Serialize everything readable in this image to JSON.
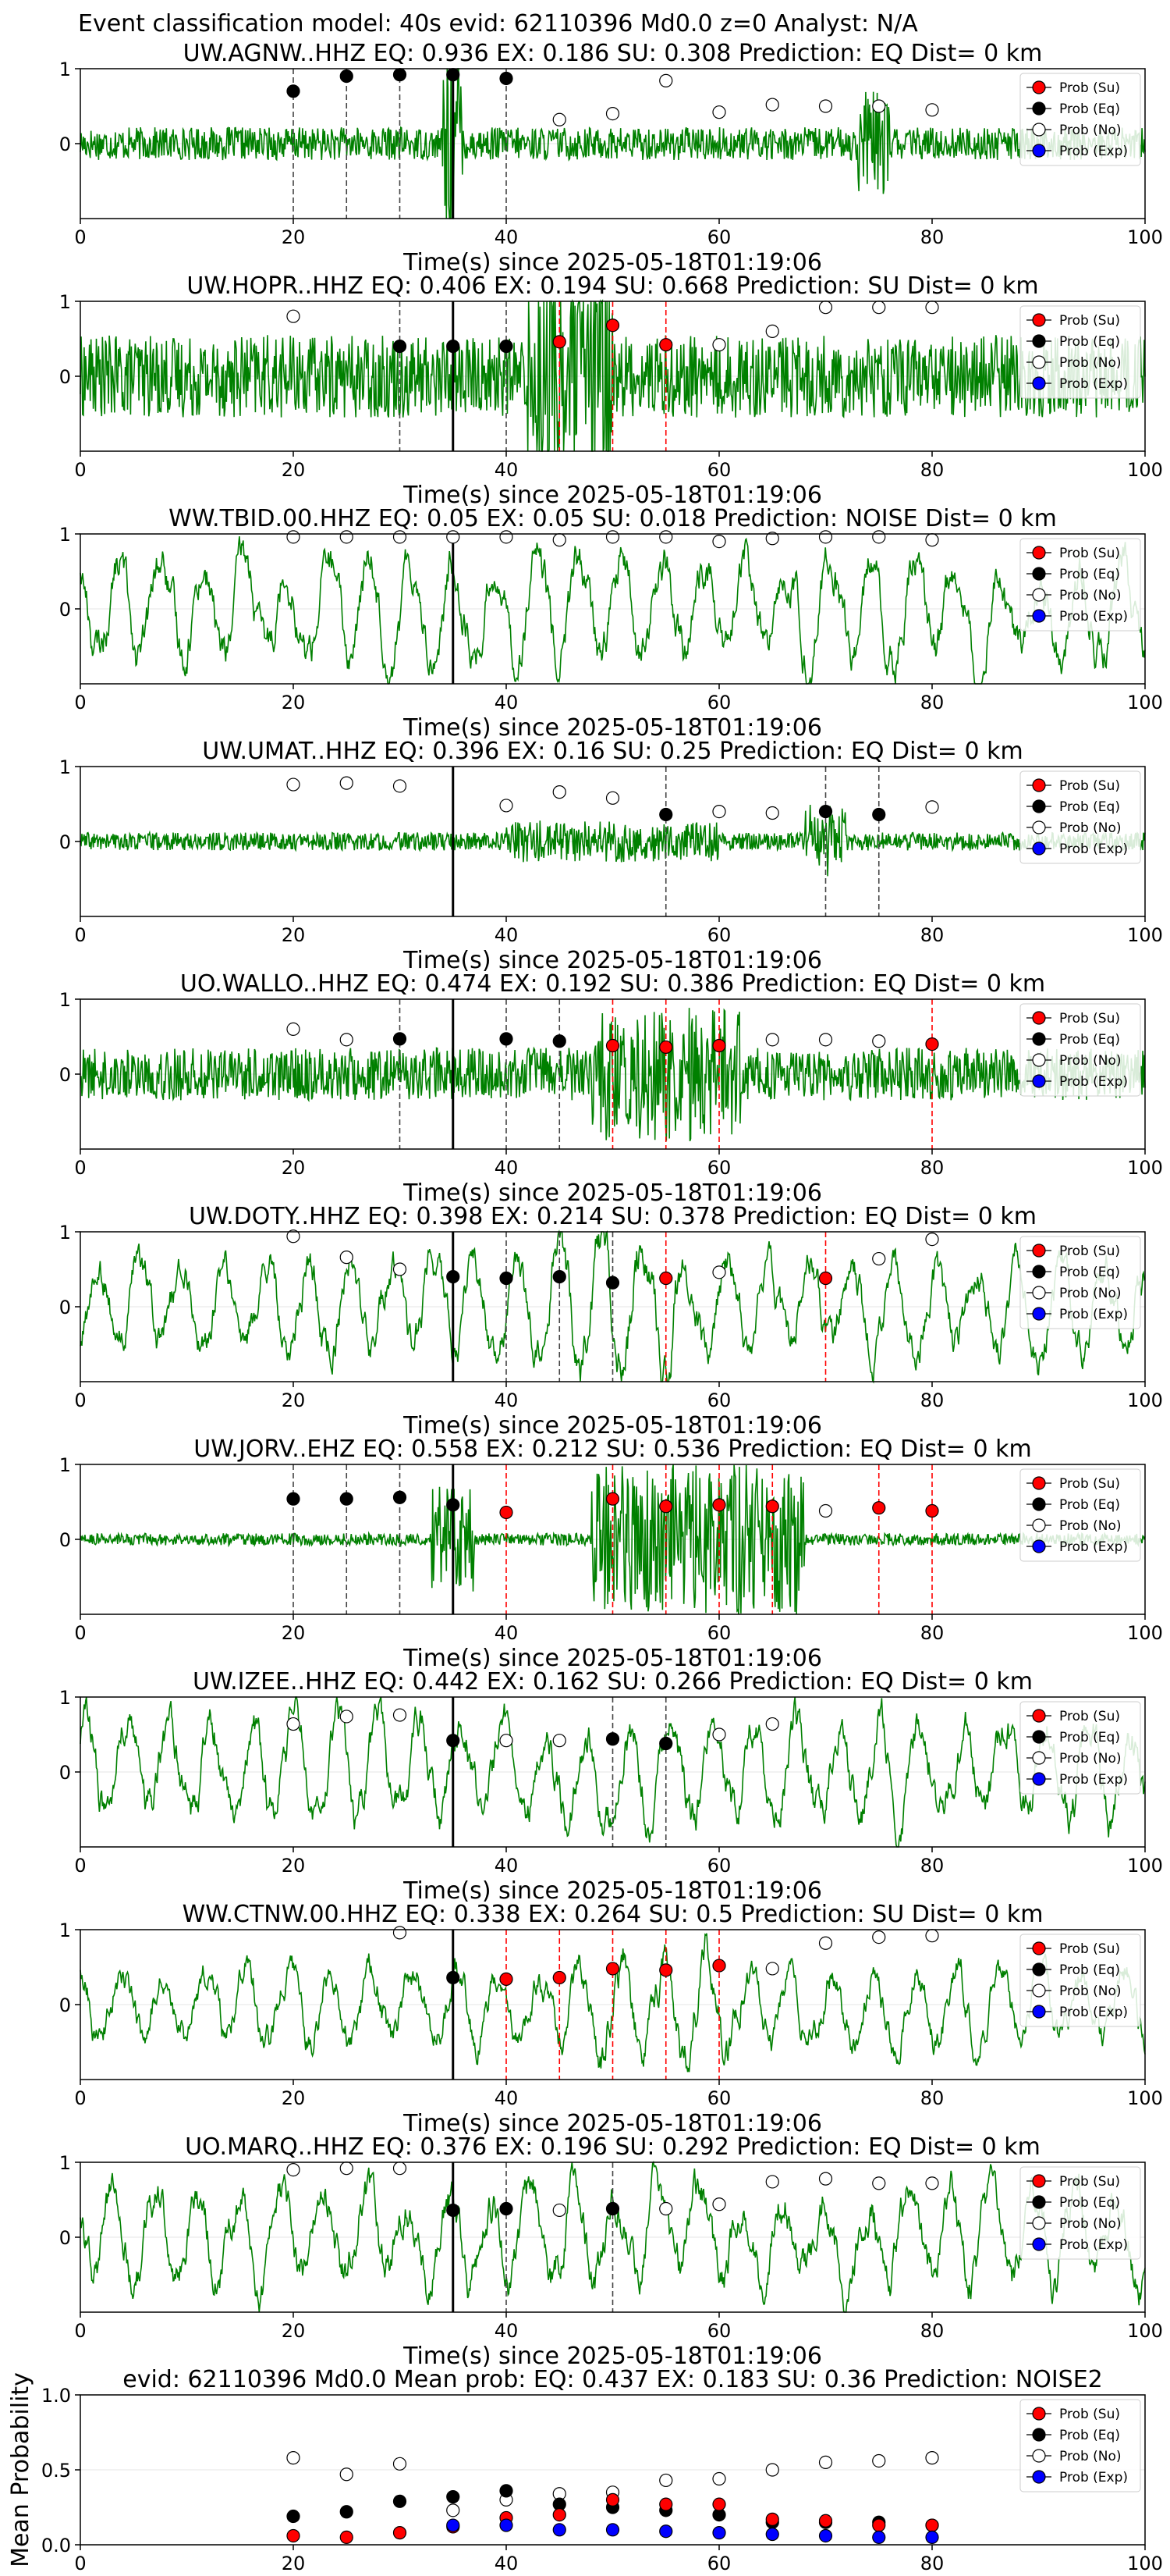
{
  "suptitle": "Event classification model: 40s evid: 62110396 Md0.0 z=0 Analyst: N/A",
  "legend_entries": [
    "Prob (Su)",
    "Prob (Eq)",
    "Prob (No)",
    "Prob (Exp)"
  ],
  "colors": {
    "su": "#ff0000",
    "eq": "#000000",
    "no": "#ffffff",
    "exp": "#0000ff",
    "waveform": "#008000"
  },
  "chart_data": [
    {
      "type": "scatter",
      "title": "UW.AGNW..HHZ   EQ: 0.936  EX: 0.186  SU: 0.308   Prediction: EQ    Dist= 0 km",
      "xlabel": "Time(s) since 2025-05-18T01:19:06",
      "xlim": [
        0,
        100
      ],
      "ylim": [
        -1,
        1
      ],
      "xticks": [
        "0",
        "20",
        "40",
        "60",
        "80",
        "100"
      ],
      "yticks": [
        "1",
        "0"
      ],
      "amp": 0.22,
      "burst": [
        34,
        36,
        1.6
      ],
      "burst2": [
        73,
        76,
        0.7
      ],
      "eq": [
        [
          20,
          0.7
        ],
        [
          25,
          0.9
        ],
        [
          30,
          0.92
        ],
        [
          35,
          0.92
        ],
        [
          40,
          0.87
        ]
      ],
      "su": [],
      "no": [
        [
          45,
          0.32
        ],
        [
          50,
          0.4
        ],
        [
          55,
          0.84
        ],
        [
          60,
          0.42
        ],
        [
          65,
          0.52
        ],
        [
          70,
          0.5
        ],
        [
          75,
          0.5
        ],
        [
          80,
          0.45
        ]
      ],
      "vlines": [
        {
          "x": 20,
          "c": "eq"
        },
        {
          "x": 25,
          "c": "eq"
        },
        {
          "x": 30,
          "c": "eq"
        },
        {
          "x": 40,
          "c": "eq"
        }
      ],
      "pick": 35
    },
    {
      "type": "scatter",
      "title": "UW.HOPR..HHZ   EQ: 0.406  EX: 0.194  SU: 0.668   Prediction: SU    Dist= 0 km",
      "xlabel": "Time(s) since 2025-05-18T01:19:06",
      "xlim": [
        0,
        100
      ],
      "ylim": [
        -1,
        1
      ],
      "xticks": [
        "0",
        "20",
        "40",
        "60",
        "80",
        "100"
      ],
      "yticks": [
        "1",
        "0"
      ],
      "amp": 0.55,
      "burst": [
        42,
        50,
        1.6
      ],
      "burst2": [
        0,
        0,
        0
      ],
      "eq": [
        [
          30,
          0.4
        ],
        [
          35,
          0.4
        ],
        [
          40,
          0.4
        ]
      ],
      "su": [
        [
          45,
          0.46
        ],
        [
          50,
          0.68
        ],
        [
          55,
          0.42
        ]
      ],
      "no": [
        [
          20,
          0.8
        ],
        [
          60,
          0.42
        ],
        [
          65,
          0.6
        ],
        [
          70,
          0.92
        ],
        [
          75,
          0.92
        ],
        [
          80,
          0.92
        ]
      ],
      "vlines": [
        {
          "x": 30,
          "c": "eq"
        },
        {
          "x": 40,
          "c": "eq"
        },
        {
          "x": 45,
          "c": "su"
        },
        {
          "x": 50,
          "c": "su"
        },
        {
          "x": 55,
          "c": "su"
        }
      ],
      "pick": 35
    },
    {
      "type": "scatter",
      "title": "WW.TBID.00.HHZ   EQ: 0.05  EX: 0.05  SU: 0.018   Prediction: NOISE    Dist= 0 km",
      "xlabel": "Time(s) since 2025-05-18T01:19:06",
      "xlim": [
        0,
        100
      ],
      "ylim": [
        -1,
        1
      ],
      "xticks": [
        "0",
        "20",
        "40",
        "60",
        "80",
        "100"
      ],
      "yticks": [
        "1",
        "0"
      ],
      "amp": 0.8,
      "burst": [
        0,
        0,
        0
      ],
      "burst2": [
        0,
        0,
        0
      ],
      "eq": [],
      "su": [],
      "no": [
        [
          20,
          0.96
        ],
        [
          25,
          0.96
        ],
        [
          30,
          0.96
        ],
        [
          35,
          0.96
        ],
        [
          40,
          0.96
        ],
        [
          45,
          0.92
        ],
        [
          50,
          0.96
        ],
        [
          55,
          0.96
        ],
        [
          60,
          0.9
        ],
        [
          65,
          0.94
        ],
        [
          70,
          0.96
        ],
        [
          75,
          0.96
        ],
        [
          80,
          0.92
        ]
      ],
      "vlines": [],
      "pick": 35
    },
    {
      "type": "scatter",
      "title": "UW.UMAT..HHZ   EQ: 0.396  EX: 0.16  SU: 0.25   Prediction: EQ    Dist= 0 km",
      "xlabel": "Time(s) since 2025-05-18T01:19:06",
      "xlim": [
        0,
        100
      ],
      "ylim": [
        -1,
        1
      ],
      "xticks": [
        "0",
        "20",
        "40",
        "60",
        "80",
        "100"
      ],
      "yticks": [
        "1",
        "0"
      ],
      "amp": 0.12,
      "burst": [
        68,
        72,
        0.5
      ],
      "burst2": [
        40,
        60,
        0.28
      ],
      "eq": [
        [
          55,
          0.36
        ],
        [
          70,
          0.4
        ],
        [
          75,
          0.36
        ]
      ],
      "su": [],
      "no": [
        [
          20,
          0.76
        ],
        [
          25,
          0.78
        ],
        [
          30,
          0.74
        ],
        [
          40,
          0.48
        ],
        [
          45,
          0.66
        ],
        [
          50,
          0.58
        ],
        [
          60,
          0.4
        ],
        [
          65,
          0.38
        ],
        [
          80,
          0.46
        ]
      ],
      "vlines": [
        {
          "x": 55,
          "c": "eq"
        },
        {
          "x": 70,
          "c": "eq"
        },
        {
          "x": 75,
          "c": "eq"
        }
      ],
      "pick": 35
    },
    {
      "type": "scatter",
      "title": "UO.WALLO..HHZ   EQ: 0.474  EX: 0.192  SU: 0.386   Prediction: EQ    Dist= 0 km",
      "xlabel": "Time(s) since 2025-05-18T01:19:06",
      "xlim": [
        0,
        100
      ],
      "ylim": [
        -1,
        1
      ],
      "xticks": [
        "0",
        "20",
        "40",
        "60",
        "80",
        "100"
      ],
      "yticks": [
        "1",
        "0"
      ],
      "amp": 0.35,
      "burst": [
        48,
        62,
        0.9
      ],
      "burst2": [
        0,
        0,
        0
      ],
      "eq": [
        [
          30,
          0.47
        ],
        [
          40,
          0.47
        ],
        [
          45,
          0.44
        ]
      ],
      "su": [
        [
          50,
          0.38
        ],
        [
          55,
          0.36
        ],
        [
          60,
          0.38
        ],
        [
          80,
          0.4
        ]
      ],
      "no": [
        [
          20,
          0.6
        ],
        [
          25,
          0.46
        ],
        [
          65,
          0.46
        ],
        [
          70,
          0.46
        ],
        [
          75,
          0.44
        ]
      ],
      "vlines": [
        {
          "x": 30,
          "c": "eq"
        },
        {
          "x": 40,
          "c": "eq"
        },
        {
          "x": 45,
          "c": "eq"
        },
        {
          "x": 50,
          "c": "su"
        },
        {
          "x": 55,
          "c": "su"
        },
        {
          "x": 60,
          "c": "su"
        },
        {
          "x": 80,
          "c": "su"
        }
      ],
      "pick": 35
    },
    {
      "type": "scatter",
      "title": "UW.DOTY..HHZ   EQ: 0.398  EX: 0.214  SU: 0.378   Prediction: EQ    Dist= 0 km",
      "xlabel": "Time(s) since 2025-05-18T01:19:06",
      "xlim": [
        0,
        100
      ],
      "ylim": [
        -1,
        1
      ],
      "xticks": [
        "0",
        "20",
        "40",
        "60",
        "80",
        "100"
      ],
      "yticks": [
        "1",
        "0"
      ],
      "amp": 0.7,
      "burst": [
        44,
        56,
        1.0
      ],
      "burst2": [
        0,
        0,
        0
      ],
      "eq": [
        [
          35,
          0.4
        ],
        [
          40,
          0.38
        ],
        [
          45,
          0.4
        ],
        [
          50,
          0.32
        ]
      ],
      "su": [
        [
          55,
          0.38
        ],
        [
          70,
          0.38
        ]
      ],
      "no": [
        [
          20,
          0.94
        ],
        [
          25,
          0.66
        ],
        [
          30,
          0.5
        ],
        [
          60,
          0.46
        ],
        [
          75,
          0.64
        ],
        [
          80,
          0.9
        ]
      ],
      "vlines": [
        {
          "x": 40,
          "c": "eq"
        },
        {
          "x": 45,
          "c": "eq"
        },
        {
          "x": 50,
          "c": "eq"
        },
        {
          "x": 55,
          "c": "su"
        },
        {
          "x": 70,
          "c": "su"
        }
      ],
      "pick": 35
    },
    {
      "type": "scatter",
      "title": "UW.JORV..EHZ   EQ: 0.558  EX: 0.212  SU: 0.536   Prediction: EQ    Dist= 0 km",
      "xlabel": "Time(s) since 2025-05-18T01:19:06",
      "xlim": [
        0,
        100
      ],
      "ylim": [
        -1,
        1
      ],
      "xticks": [
        "0",
        "20",
        "40",
        "60",
        "80",
        "100"
      ],
      "yticks": [
        "1",
        "0"
      ],
      "amp": 0.08,
      "burst": [
        48,
        68,
        1.0
      ],
      "burst2": [
        33,
        37,
        0.7
      ],
      "eq": [
        [
          20,
          0.54
        ],
        [
          25,
          0.54
        ],
        [
          30,
          0.56
        ],
        [
          35,
          0.46
        ]
      ],
      "su": [
        [
          40,
          0.36
        ],
        [
          50,
          0.54
        ],
        [
          55,
          0.44
        ],
        [
          60,
          0.46
        ],
        [
          65,
          0.44
        ],
        [
          75,
          0.42
        ],
        [
          80,
          0.38
        ]
      ],
      "no": [
        [
          70,
          0.38
        ]
      ],
      "vlines": [
        {
          "x": 20,
          "c": "eq"
        },
        {
          "x": 25,
          "c": "eq"
        },
        {
          "x": 30,
          "c": "eq"
        },
        {
          "x": 40,
          "c": "su"
        },
        {
          "x": 50,
          "c": "su"
        },
        {
          "x": 55,
          "c": "su"
        },
        {
          "x": 60,
          "c": "su"
        },
        {
          "x": 65,
          "c": "su"
        },
        {
          "x": 75,
          "c": "su"
        },
        {
          "x": 80,
          "c": "su"
        }
      ],
      "pick": 35
    },
    {
      "type": "scatter",
      "title": "UW.IZEE..HHZ   EQ: 0.442  EX: 0.162  SU: 0.266   Prediction: EQ    Dist= 0 km",
      "xlabel": "Time(s) since 2025-05-18T01:19:06",
      "xlim": [
        0,
        100
      ],
      "ylim": [
        -1,
        1
      ],
      "xticks": [
        "0",
        "20",
        "40",
        "60",
        "80",
        "100"
      ],
      "yticks": [
        "1",
        "0"
      ],
      "amp": 0.75,
      "burst": [
        0,
        0,
        0
      ],
      "burst2": [
        0,
        0,
        0
      ],
      "eq": [
        [
          35,
          0.42
        ],
        [
          50,
          0.44
        ],
        [
          55,
          0.38
        ]
      ],
      "su": [],
      "no": [
        [
          20,
          0.64
        ],
        [
          25,
          0.74
        ],
        [
          30,
          0.76
        ],
        [
          40,
          0.42
        ],
        [
          45,
          0.42
        ],
        [
          60,
          0.5
        ],
        [
          65,
          0.64
        ]
      ],
      "vlines": [
        {
          "x": 50,
          "c": "eq"
        },
        {
          "x": 55,
          "c": "eq"
        }
      ],
      "pick": 35
    },
    {
      "type": "scatter",
      "title": "WW.CTNW.00.HHZ   EQ: 0.338  EX: 0.264  SU: 0.5   Prediction: SU    Dist= 0 km",
      "xlabel": "Time(s) since 2025-05-18T01:19:06",
      "xlim": [
        0,
        100
      ],
      "ylim": [
        -1,
        1
      ],
      "xticks": [
        "0",
        "20",
        "40",
        "60",
        "80",
        "100"
      ],
      "yticks": [
        "1",
        "0"
      ],
      "amp": 0.6,
      "burst": [
        48,
        62,
        0.8
      ],
      "burst2": [
        0,
        0,
        0
      ],
      "eq": [
        [
          35,
          0.36
        ]
      ],
      "su": [
        [
          40,
          0.34
        ],
        [
          45,
          0.36
        ],
        [
          50,
          0.48
        ],
        [
          55,
          0.46
        ],
        [
          60,
          0.52
        ]
      ],
      "no": [
        [
          30,
          0.96
        ],
        [
          65,
          0.48
        ],
        [
          70,
          0.82
        ],
        [
          75,
          0.9
        ],
        [
          80,
          0.92
        ]
      ],
      "vlines": [
        {
          "x": 40,
          "c": "su"
        },
        {
          "x": 45,
          "c": "su"
        },
        {
          "x": 50,
          "c": "su"
        },
        {
          "x": 55,
          "c": "su"
        },
        {
          "x": 60,
          "c": "su"
        }
      ],
      "pick": 35
    },
    {
      "type": "scatter",
      "title": "UO.MARQ..HHZ   EQ: 0.376  EX: 0.196  SU: 0.292   Prediction: EQ    Dist= 0 km",
      "xlabel": "Time(s) since 2025-05-18T01:19:06",
      "xlim": [
        0,
        100
      ],
      "ylim": [
        -1,
        1
      ],
      "xticks": [
        "0",
        "20",
        "40",
        "60",
        "80",
        "100"
      ],
      "yticks": [
        "1",
        "0"
      ],
      "amp": 0.75,
      "burst": [
        0,
        0,
        0
      ],
      "burst2": [
        0,
        0,
        0
      ],
      "eq": [
        [
          35,
          0.36
        ],
        [
          40,
          0.38
        ],
        [
          50,
          0.38
        ]
      ],
      "su": [],
      "no": [
        [
          20,
          0.9
        ],
        [
          25,
          0.92
        ],
        [
          30,
          0.92
        ],
        [
          45,
          0.36
        ],
        [
          55,
          0.38
        ],
        [
          60,
          0.44
        ],
        [
          65,
          0.74
        ],
        [
          70,
          0.78
        ],
        [
          75,
          0.72
        ],
        [
          80,
          0.72
        ]
      ],
      "vlines": [
        {
          "x": 40,
          "c": "eq"
        },
        {
          "x": 50,
          "c": "eq"
        }
      ],
      "pick": 35
    },
    {
      "type": "scatter",
      "title": "evid: 62110396  Md0.0   Mean prob:   EQ: 0.437  EX: 0.183  SU: 0.36   Prediction: NOISE2",
      "xlabel": "",
      "ylabel": "Mean Probability",
      "xlim": [
        0,
        100
      ],
      "ylim": [
        0,
        1
      ],
      "xticks": [
        "0",
        "20",
        "40",
        "60",
        "80",
        "100"
      ],
      "yticks": [
        "1.0",
        "0.5",
        "0.0"
      ],
      "no": [
        [
          20,
          0.58
        ],
        [
          25,
          0.47
        ],
        [
          30,
          0.54
        ],
        [
          35,
          0.23
        ],
        [
          40,
          0.3
        ],
        [
          45,
          0.34
        ],
        [
          50,
          0.35
        ],
        [
          55,
          0.43
        ],
        [
          60,
          0.44
        ],
        [
          65,
          0.5
        ],
        [
          70,
          0.55
        ],
        [
          75,
          0.56
        ],
        [
          80,
          0.58
        ]
      ],
      "eq": [
        [
          20,
          0.19
        ],
        [
          25,
          0.22
        ],
        [
          30,
          0.29
        ],
        [
          35,
          0.32
        ],
        [
          40,
          0.36
        ],
        [
          45,
          0.27
        ],
        [
          50,
          0.25
        ],
        [
          55,
          0.23
        ],
        [
          60,
          0.2
        ],
        [
          65,
          0.15
        ],
        [
          70,
          0.15
        ],
        [
          75,
          0.15
        ],
        [
          80,
          0.13
        ]
      ],
      "su": [
        [
          20,
          0.06
        ],
        [
          25,
          0.05
        ],
        [
          30,
          0.08
        ],
        [
          35,
          0.12
        ],
        [
          40,
          0.18
        ],
        [
          45,
          0.2
        ],
        [
          50,
          0.3
        ],
        [
          55,
          0.27
        ],
        [
          60,
          0.27
        ],
        [
          65,
          0.17
        ],
        [
          70,
          0.16
        ],
        [
          75,
          0.13
        ],
        [
          80,
          0.13
        ]
      ],
      "exp": [
        [
          35,
          0.13
        ],
        [
          40,
          0.13
        ],
        [
          45,
          0.1
        ],
        [
          50,
          0.1
        ],
        [
          55,
          0.09
        ],
        [
          60,
          0.08
        ],
        [
          65,
          0.07
        ],
        [
          70,
          0.06
        ],
        [
          75,
          0.05
        ],
        [
          80,
          0.05
        ]
      ]
    }
  ]
}
